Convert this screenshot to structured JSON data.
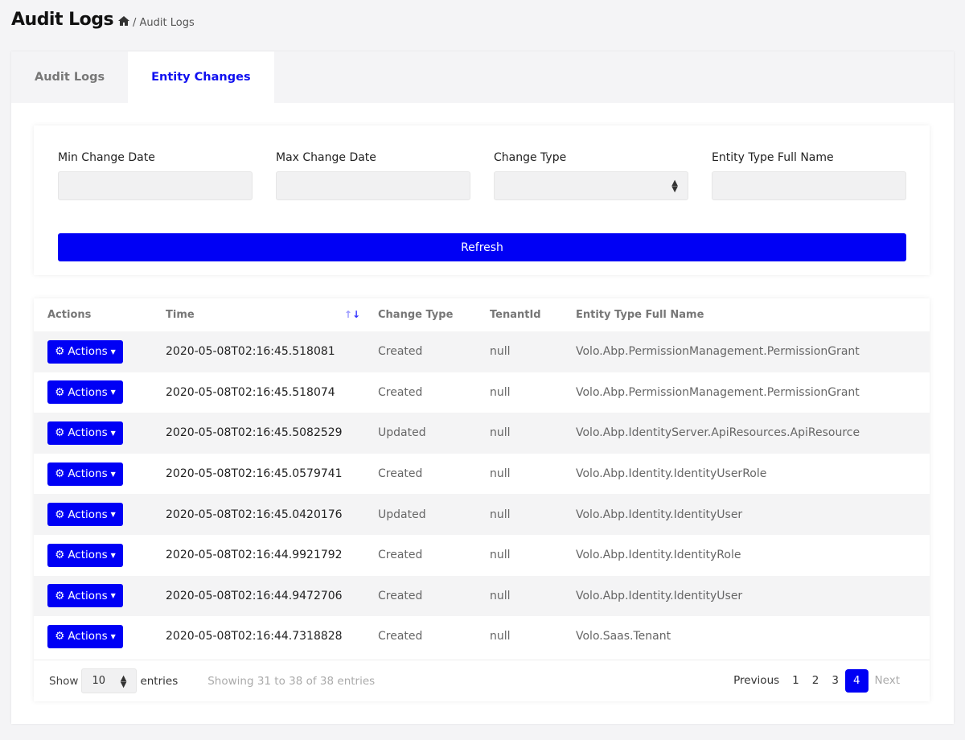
{
  "header": {
    "title": "Audit Logs",
    "breadcrumb": "/ Audit Logs"
  },
  "tabs": [
    {
      "label": "Audit Logs",
      "active": false
    },
    {
      "label": "Entity Changes",
      "active": true
    }
  ],
  "filters": {
    "min_label": "Min Change Date",
    "max_label": "Max Change Date",
    "type_label": "Change Type",
    "entity_label": "Entity Type Full Name",
    "refresh": "Refresh"
  },
  "table": {
    "columns": [
      "Actions",
      "Time",
      "Change Type",
      "TenantId",
      "Entity Type Full Name"
    ],
    "action_label": "Actions",
    "rows": [
      {
        "time": "2020-05-08T02:16:45.518081",
        "type": "Created",
        "tenant": "null",
        "entity": "Volo.Abp.PermissionManagement.PermissionGrant"
      },
      {
        "time": "2020-05-08T02:16:45.518074",
        "type": "Created",
        "tenant": "null",
        "entity": "Volo.Abp.PermissionManagement.PermissionGrant"
      },
      {
        "time": "2020-05-08T02:16:45.5082529",
        "type": "Updated",
        "tenant": "null",
        "entity": "Volo.Abp.IdentityServer.ApiResources.ApiResource"
      },
      {
        "time": "2020-05-08T02:16:45.0579741",
        "type": "Created",
        "tenant": "null",
        "entity": "Volo.Abp.Identity.IdentityUserRole"
      },
      {
        "time": "2020-05-08T02:16:45.0420176",
        "type": "Updated",
        "tenant": "null",
        "entity": "Volo.Abp.Identity.IdentityUser"
      },
      {
        "time": "2020-05-08T02:16:44.9921792",
        "type": "Created",
        "tenant": "null",
        "entity": "Volo.Abp.Identity.IdentityRole"
      },
      {
        "time": "2020-05-08T02:16:44.9472706",
        "type": "Created",
        "tenant": "null",
        "entity": "Volo.Abp.Identity.IdentityUser"
      },
      {
        "time": "2020-05-08T02:16:44.7318828",
        "type": "Created",
        "tenant": "null",
        "entity": "Volo.Saas.Tenant"
      }
    ]
  },
  "footer": {
    "show": "Show",
    "page_size": "10",
    "entries": "entries",
    "info": "Showing 31 to 38 of 38 entries",
    "previous": "Previous",
    "pages": [
      "1",
      "2",
      "3",
      "4"
    ],
    "current_page": "4",
    "next": "Next"
  },
  "colors": {
    "accent": "#0000f5"
  }
}
